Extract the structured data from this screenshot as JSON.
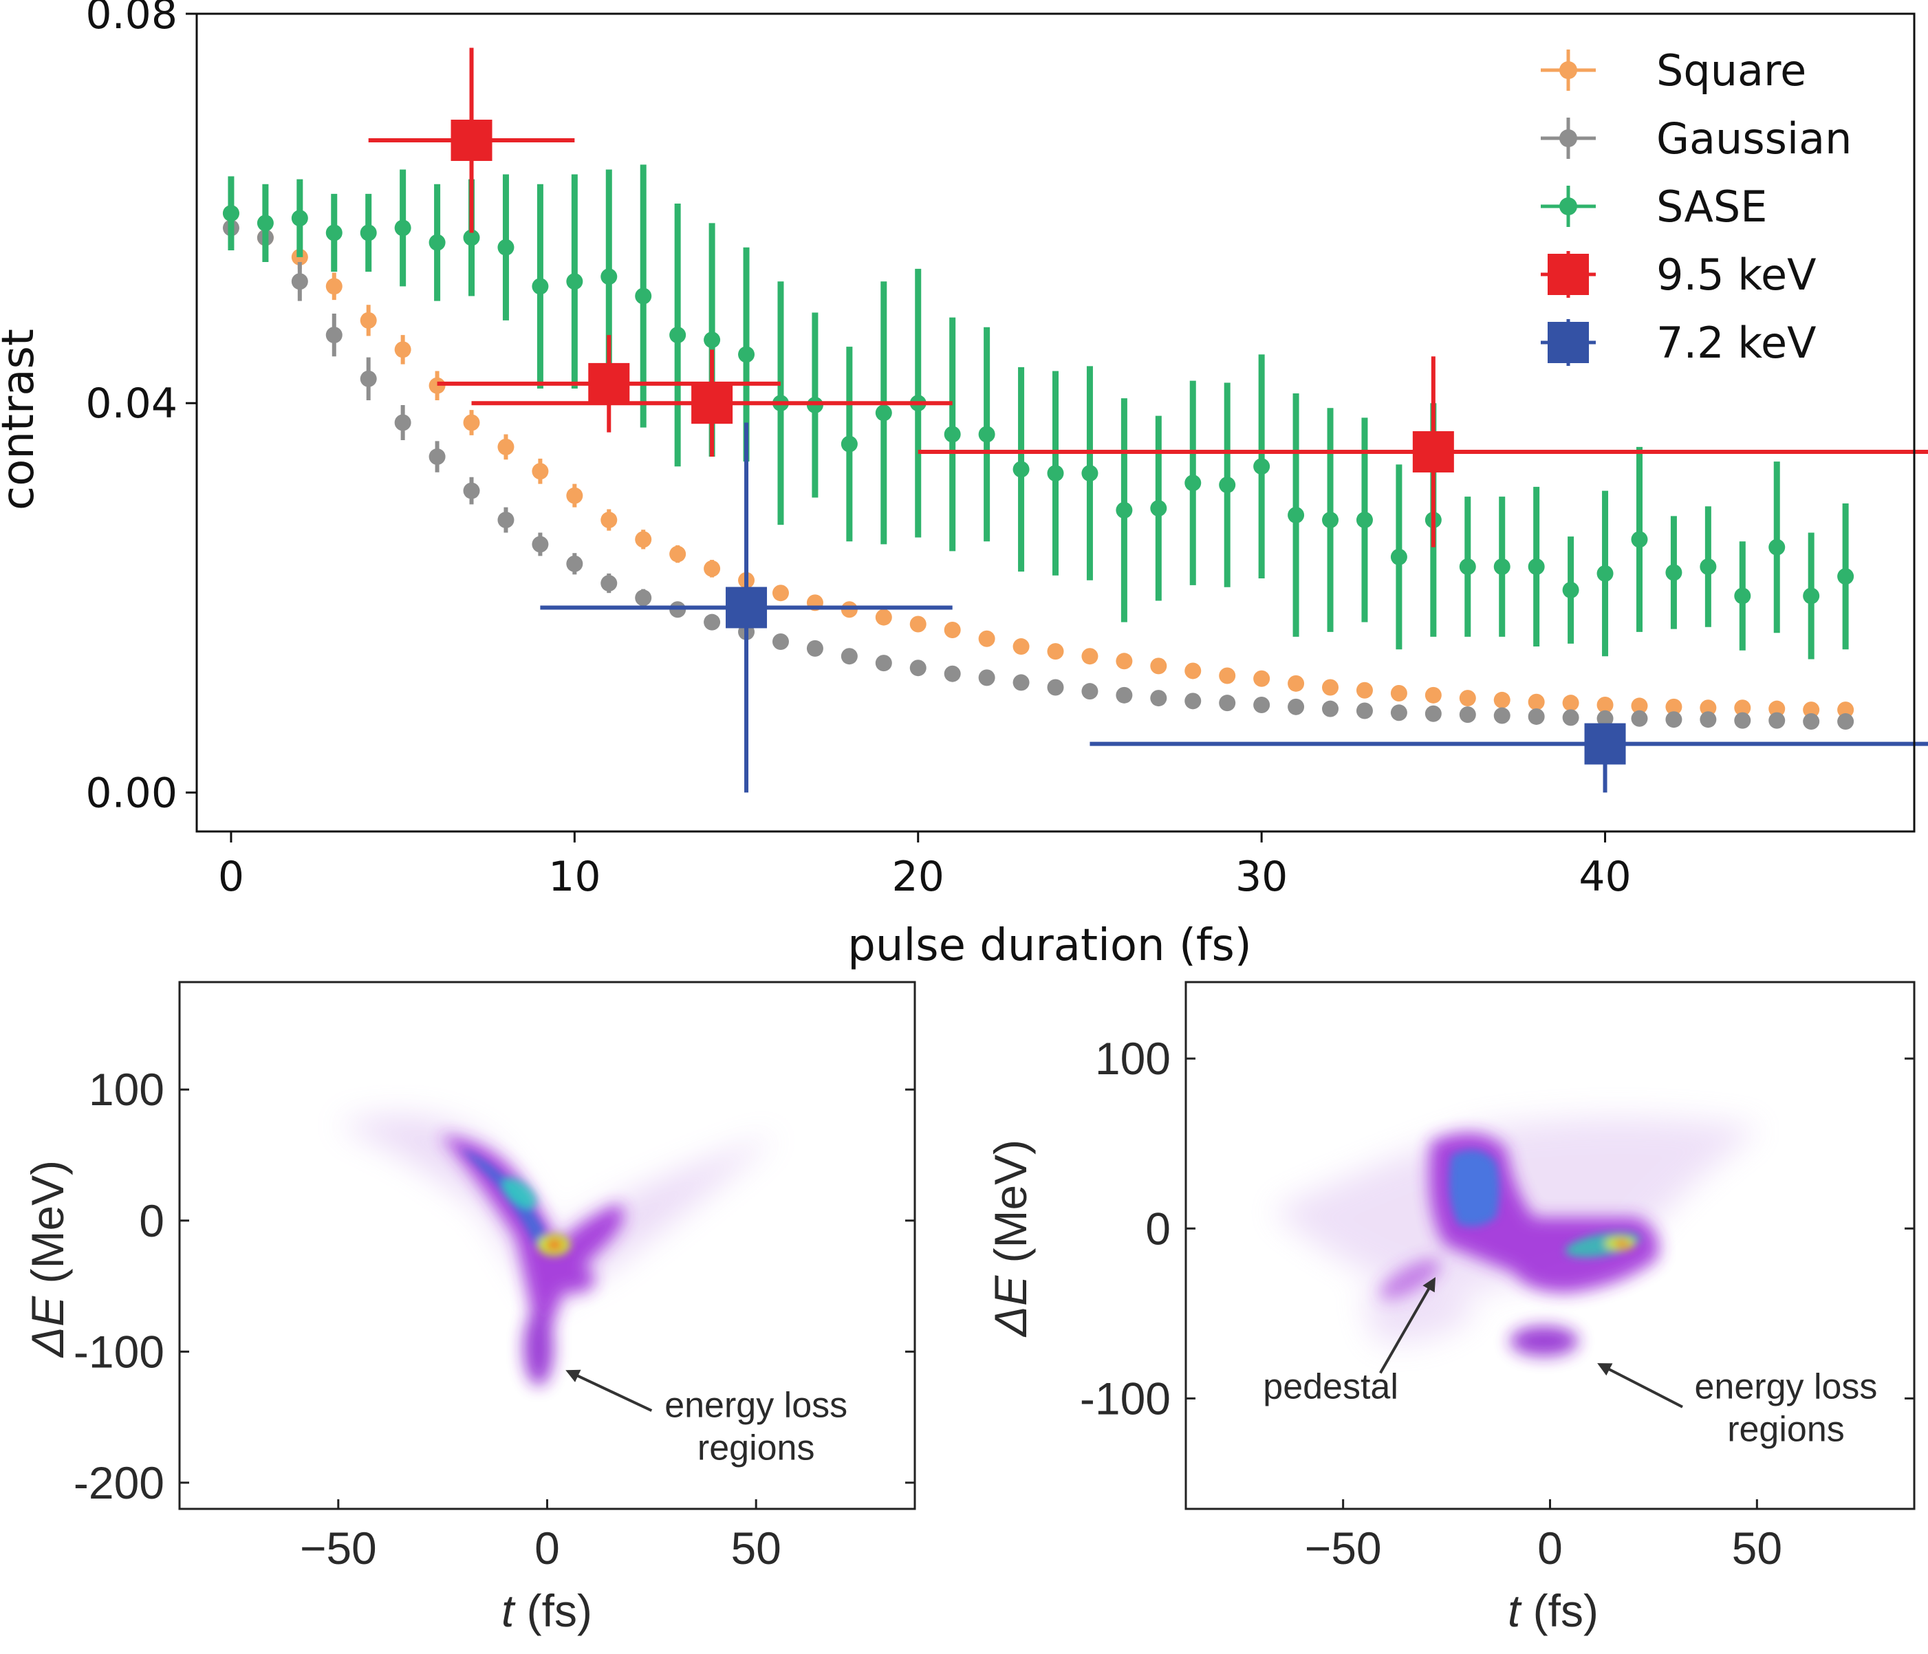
{
  "colors": {
    "square": "#f5a35c",
    "gaussian": "#8e8e8e",
    "sase": "#2fb36c",
    "kev95": "#e82227",
    "kev72": "#3452a5"
  },
  "chart_data": [
    {
      "type": "scatter",
      "xlabel": "pulse duration (fs)",
      "ylabel": "contrast",
      "xlim": [
        -1,
        49
      ],
      "ylim": [
        -0.004,
        0.08
      ],
      "xticks": [
        "0",
        "10",
        "20",
        "30",
        "40"
      ],
      "xtick_values": [
        0,
        10,
        20,
        30,
        40
      ],
      "yticks": [
        "0.00",
        "0.04",
        "0.08"
      ],
      "ytick_values": [
        0.0,
        0.04,
        0.08
      ],
      "legend_position": "top-right",
      "series": [
        {
          "name": "Square",
          "color_key": "square",
          "marker": "circle",
          "x": [
            0,
            1,
            2,
            3,
            4,
            5,
            6,
            7,
            8,
            9,
            10,
            11,
            12,
            13,
            14,
            15,
            16,
            17,
            18,
            19,
            20,
            21,
            22,
            23,
            24,
            25,
            26,
            27,
            28,
            29,
            30,
            31,
            32,
            33,
            34,
            35,
            36,
            37,
            38,
            39,
            40,
            41,
            42,
            43,
            44,
            45,
            46,
            47
          ],
          "y": [
            0.0595,
            0.057,
            0.055,
            0.052,
            0.0485,
            0.0455,
            0.0418,
            0.038,
            0.0355,
            0.033,
            0.0305,
            0.028,
            0.026,
            0.0245,
            0.023,
            0.0218,
            0.0205,
            0.0195,
            0.0188,
            0.018,
            0.0173,
            0.0167,
            0.0158,
            0.015,
            0.0145,
            0.014,
            0.0135,
            0.013,
            0.0125,
            0.012,
            0.0117,
            0.0112,
            0.0108,
            0.0105,
            0.0102,
            0.01,
            0.0097,
            0.0095,
            0.0093,
            0.0092,
            0.009,
            0.0089,
            0.0088,
            0.0087,
            0.0087,
            0.0086,
            0.0085,
            0.0085
          ],
          "yerr": [
            0.001,
            0.001,
            0.0012,
            0.0014,
            0.0016,
            0.0015,
            0.0015,
            0.0013,
            0.0013,
            0.0013,
            0.0012,
            0.0011,
            0.001,
            0.0009,
            0.0009,
            0.0008,
            0.0008,
            0.0007,
            0.0007,
            0.0006,
            0.0006,
            0.0006,
            0.0005,
            0.0005,
            0.0005,
            0.0005,
            0.0005,
            0.0005,
            0.0005,
            0.0005,
            0.0005,
            0.0005,
            0.0005,
            0.0005,
            0.0005,
            0.0005,
            0.0005,
            0.0005,
            0.0005,
            0.0005,
            0.0005,
            0.0005,
            0.0005,
            0.0005,
            0.0005,
            0.0005,
            0.0005,
            0.0005
          ]
        },
        {
          "name": "Gaussian",
          "color_key": "gaussian",
          "marker": "circle",
          "x": [
            0,
            1,
            2,
            3,
            4,
            5,
            6,
            7,
            8,
            9,
            10,
            11,
            12,
            13,
            14,
            15,
            16,
            17,
            18,
            19,
            20,
            21,
            22,
            23,
            24,
            25,
            26,
            27,
            28,
            29,
            30,
            31,
            32,
            33,
            34,
            35,
            36,
            37,
            38,
            39,
            40,
            41,
            42,
            43,
            44,
            45,
            46,
            47
          ],
          "y": [
            0.058,
            0.057,
            0.0525,
            0.047,
            0.0425,
            0.038,
            0.0345,
            0.031,
            0.028,
            0.0255,
            0.0235,
            0.0215,
            0.02,
            0.0188,
            0.0175,
            0.0165,
            0.0155,
            0.0148,
            0.014,
            0.0133,
            0.0128,
            0.0122,
            0.0118,
            0.0113,
            0.0108,
            0.0104,
            0.01,
            0.0097,
            0.0094,
            0.0092,
            0.009,
            0.0088,
            0.0086,
            0.0084,
            0.0082,
            0.0081,
            0.008,
            0.0079,
            0.0078,
            0.0077,
            0.0076,
            0.0076,
            0.0075,
            0.0075,
            0.0074,
            0.0074,
            0.0073,
            0.0073
          ],
          "yerr": [
            0.0015,
            0.0015,
            0.002,
            0.0022,
            0.0022,
            0.0018,
            0.0016,
            0.0014,
            0.0013,
            0.0012,
            0.0011,
            0.001,
            0.0009,
            0.0008,
            0.0008,
            0.0007,
            0.0007,
            0.0006,
            0.0006,
            0.0006,
            0.0005,
            0.0005,
            0.0005,
            0.0005,
            0.0005,
            0.0005,
            0.0005,
            0.0005,
            0.0005,
            0.0005,
            0.0005,
            0.0005,
            0.0005,
            0.0005,
            0.0005,
            0.0005,
            0.0005,
            0.0005,
            0.0005,
            0.0005,
            0.0005,
            0.0005,
            0.0005,
            0.0005,
            0.0005,
            0.0005,
            0.0005,
            0.0005
          ]
        },
        {
          "name": "SASE",
          "color_key": "sase",
          "marker": "circle",
          "x": [
            0,
            1,
            2,
            3,
            4,
            5,
            6,
            7,
            8,
            9,
            10,
            11,
            12,
            13,
            14,
            15,
            16,
            17,
            18,
            19,
            20,
            21,
            22,
            23,
            24,
            25,
            26,
            27,
            28,
            29,
            30,
            31,
            32,
            33,
            34,
            35,
            36,
            37,
            38,
            39,
            40,
            41,
            42,
            43,
            44,
            45,
            46,
            47
          ],
          "y": [
            0.0595,
            0.0585,
            0.059,
            0.0575,
            0.0575,
            0.058,
            0.0565,
            0.057,
            0.056,
            0.052,
            0.0525,
            0.053,
            0.051,
            0.047,
            0.0465,
            0.045,
            0.04,
            0.0398,
            0.0358,
            0.039,
            0.04,
            0.0368,
            0.0368,
            0.0332,
            0.0328,
            0.0328,
            0.029,
            0.0292,
            0.0318,
            0.0316,
            0.0335,
            0.0285,
            0.028,
            0.028,
            0.0242,
            0.028,
            0.0232,
            0.0232,
            0.0232,
            0.0208,
            0.0225,
            0.026,
            0.0226,
            0.0232,
            0.0202,
            0.0252,
            0.0202,
            0.0222
          ],
          "yerr": [
            0.0038,
            0.004,
            0.004,
            0.004,
            0.004,
            0.006,
            0.006,
            0.006,
            0.0075,
            0.0105,
            0.011,
            0.011,
            0.0135,
            0.0135,
            0.012,
            0.011,
            0.0125,
            0.0095,
            0.01,
            0.0135,
            0.0138,
            0.012,
            0.011,
            0.0105,
            0.0105,
            0.011,
            0.0115,
            0.0095,
            0.0105,
            0.0105,
            0.0115,
            0.0125,
            0.0115,
            0.0105,
            0.0095,
            0.012,
            0.0072,
            0.0072,
            0.0082,
            0.0055,
            0.0085,
            0.0095,
            0.0058,
            0.0062,
            0.0056,
            0.0088,
            0.0065,
            0.0075
          ]
        },
        {
          "name": "9.5 keV",
          "color_key": "kev95",
          "marker": "square",
          "x": [
            7,
            11,
            14,
            35
          ],
          "y": [
            0.067,
            0.042,
            0.04,
            0.035
          ],
          "xerr_low": [
            3,
            5,
            7,
            15
          ],
          "xerr_high": [
            3,
            5,
            7,
            15
          ],
          "yerr": [
            0.0095,
            0.005,
            0.0055,
            0.0098
          ]
        },
        {
          "name": "7.2 keV",
          "color_key": "kev72",
          "marker": "square",
          "x": [
            15,
            40
          ],
          "y": [
            0.019,
            0.005
          ],
          "xerr_low": [
            6,
            15
          ],
          "xerr_high": [
            6,
            15
          ],
          "yerr_low": [
            0.019,
            0.005
          ],
          "yerr_high": [
            0.019,
            0.0
          ]
        }
      ]
    },
    {
      "type": "heatmap",
      "xlabel_var": "t",
      "xlabel_unit": " (fs)",
      "ylabel_prefix": "Δ",
      "ylabel_var": "E",
      "ylabel_unit": " (MeV)",
      "xlim": [
        -88,
        88
      ],
      "ylim": [
        -220,
        182
      ],
      "xticks": [
        "−50",
        "0",
        "50"
      ],
      "xtick_values": [
        -50,
        0,
        50
      ],
      "yticks": [
        "100",
        "0",
        "-100",
        "-200"
      ],
      "ytick_values": [
        100,
        0,
        -100,
        -200
      ],
      "annotations": [
        {
          "lines": [
            "energy loss",
            "regions"
          ],
          "text_x": 50,
          "text_y": -150,
          "arrow_from": [
            25,
            -145
          ],
          "arrow_to": [
            5,
            -115
          ]
        }
      ]
    },
    {
      "type": "heatmap",
      "xlabel_var": "t",
      "xlabel_unit": " (fs)",
      "ylabel_prefix": "Δ",
      "ylabel_var": "E",
      "ylabel_unit": " (MeV)",
      "xlim": [
        -88,
        88
      ],
      "ylim": [
        -165,
        145
      ],
      "xticks": [
        "−50",
        "0",
        "50"
      ],
      "xtick_values": [
        -50,
        0,
        50
      ],
      "yticks": [
        "100",
        "0",
        "-100"
      ],
      "ytick_values": [
        100,
        0,
        -100
      ],
      "annotations": [
        {
          "lines": [
            "pedestal"
          ],
          "text_x": -53,
          "text_y": -100,
          "arrow_from": [
            -41,
            -85
          ],
          "arrow_to": [
            -28,
            -30
          ]
        },
        {
          "lines": [
            "energy loss",
            "regions"
          ],
          "text_x": 57,
          "text_y": -100,
          "arrow_from": [
            32,
            -105
          ],
          "arrow_to": [
            12,
            -80
          ]
        }
      ]
    }
  ]
}
